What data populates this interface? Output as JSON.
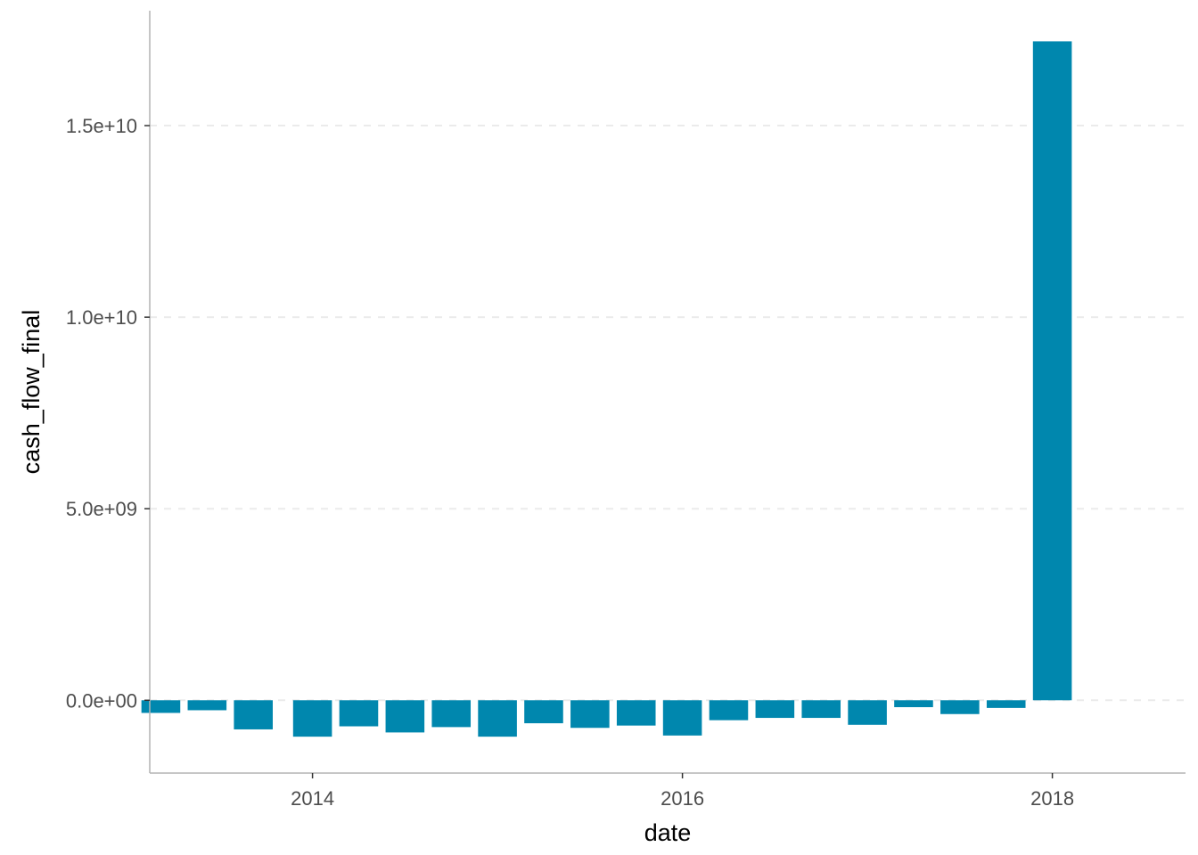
{
  "chart_data": {
    "type": "bar",
    "xlabel": "date",
    "ylabel": "cash_flow_final",
    "bar_color": "#0087AE",
    "grid_color": "#EBEBEB",
    "axis_color": "#B3B3B3",
    "ylim": [
      -1900000000,
      18000000000
    ],
    "y_ticks": [
      {
        "value": 0,
        "label": "0.0e+00"
      },
      {
        "value": 5000000000,
        "label": "5.0e+09"
      },
      {
        "value": 10000000000,
        "label": "1.0e+10"
      },
      {
        "value": 15000000000,
        "label": "1.5e+10"
      }
    ],
    "xlim": [
      2013.12,
      2018.72
    ],
    "x_ticks": [
      {
        "value": 2014,
        "label": "2014"
      },
      {
        "value": 2016,
        "label": "2016"
      },
      {
        "value": 2018,
        "label": "2018"
      }
    ],
    "bar_width_years": 0.21,
    "bars": [
      {
        "x": 2013.18,
        "value": -330000000
      },
      {
        "x": 2013.43,
        "value": -260000000
      },
      {
        "x": 2013.68,
        "value": -760000000
      },
      {
        "x": 2014.0,
        "value": -950000000
      },
      {
        "x": 2014.25,
        "value": -680000000
      },
      {
        "x": 2014.5,
        "value": -840000000
      },
      {
        "x": 2014.75,
        "value": -700000000
      },
      {
        "x": 2015.0,
        "value": -950000000
      },
      {
        "x": 2015.25,
        "value": -600000000
      },
      {
        "x": 2015.5,
        "value": -720000000
      },
      {
        "x": 2015.75,
        "value": -660000000
      },
      {
        "x": 2016.0,
        "value": -920000000
      },
      {
        "x": 2016.25,
        "value": -520000000
      },
      {
        "x": 2016.5,
        "value": -460000000
      },
      {
        "x": 2016.75,
        "value": -460000000
      },
      {
        "x": 2017.0,
        "value": -640000000
      },
      {
        "x": 2017.25,
        "value": -180000000
      },
      {
        "x": 2017.5,
        "value": -360000000
      },
      {
        "x": 2017.75,
        "value": -200000000
      },
      {
        "x": 2018.0,
        "value": 17200000000
      }
    ]
  }
}
